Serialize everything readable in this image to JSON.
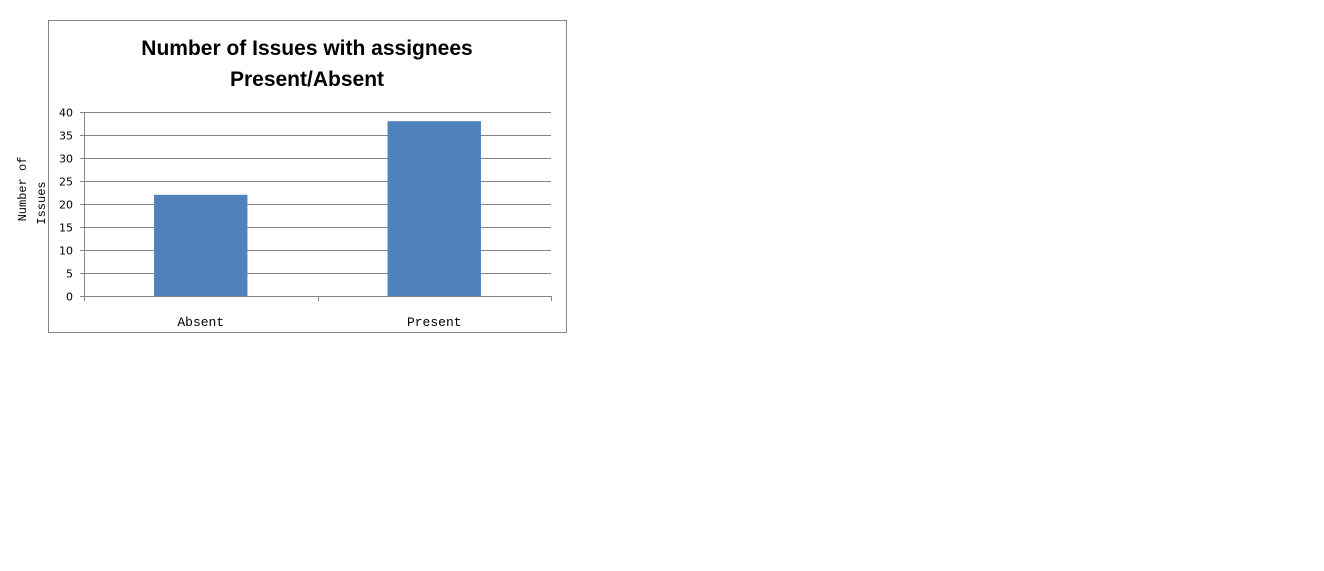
{
  "chart_data": {
    "type": "bar",
    "title_lines": [
      "Number of Issues with assignees",
      "Present/Absent"
    ],
    "categories": [
      "Absent",
      "Present"
    ],
    "values": [
      22,
      38
    ],
    "ylabel_lines": [
      "Number of",
      "Issues"
    ],
    "xlabel": "",
    "ylim": [
      0,
      40
    ],
    "yticks": [
      "0",
      "5",
      "10",
      "15",
      "20",
      "25",
      "30",
      "35",
      "40"
    ],
    "grid": true,
    "legend": "none",
    "bar_color": "#4F81BD",
    "grid_color": "#868686"
  }
}
